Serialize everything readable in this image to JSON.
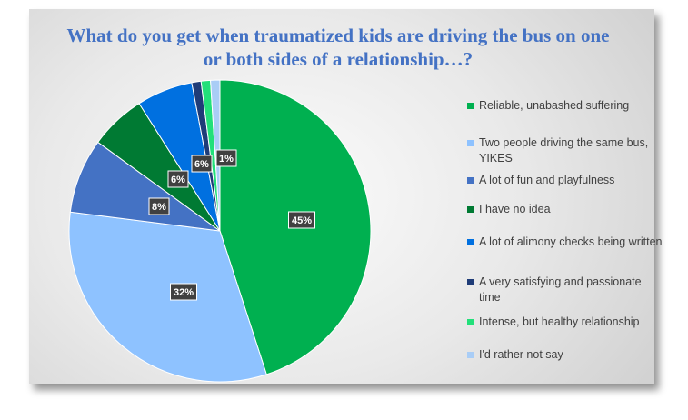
{
  "chart_data": {
    "type": "pie",
    "title": "What do you get when traumatized kids are driving the bus on one or both sides of a relationship…?",
    "legend_position": "right",
    "slices": [
      {
        "label": "Reliable, unabashed suffering",
        "value": 45,
        "display": "45%",
        "color": "#00b050"
      },
      {
        "label": "Two people driving the same bus, YIKES",
        "value": 32,
        "display": "32%",
        "color": "#8ec2ff"
      },
      {
        "label": "A lot of fun and playfulness",
        "value": 8,
        "display": "8%",
        "color": "#4472c4"
      },
      {
        "label": "I have no idea",
        "value": 6,
        "display": "6%",
        "color": "#007a33"
      },
      {
        "label": "A lot of alimony checks being written",
        "value": 6,
        "display": "6%",
        "color": "#0070e0"
      },
      {
        "label": "A very satisfying and passionate time",
        "value": 1,
        "display": "",
        "color": "#1f3c78"
      },
      {
        "label": "Intense, but healthy relationship",
        "value": 1,
        "display": "1%",
        "color": "#22e07a"
      },
      {
        "label": "I'd rather not say",
        "value": 1,
        "display": "",
        "color": "#a9cdf6"
      }
    ]
  }
}
